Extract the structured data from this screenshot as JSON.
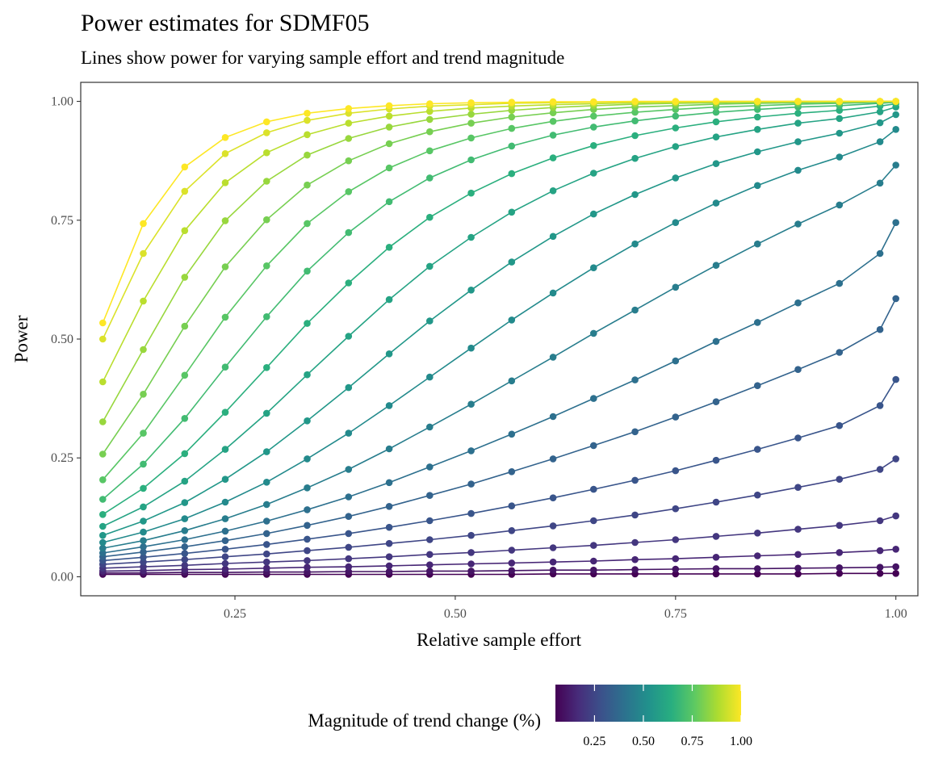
{
  "chart_data": {
    "type": "line",
    "title": "Power estimates for SDMF05",
    "subtitle": "Lines show power for varying sample effort and trend magnitude",
    "xlabel": "Relative sample effort",
    "ylabel": "Power",
    "xlim": [
      0.075,
      1.025
    ],
    "ylim": [
      -0.04,
      1.04
    ],
    "x_ticks": [
      0.25,
      0.5,
      0.75,
      1.0
    ],
    "x_tick_labels": [
      "0.25",
      "0.50",
      "0.75",
      "1.00"
    ],
    "y_ticks": [
      0,
      0.25,
      0.5,
      0.75,
      1.0
    ],
    "y_tick_labels": [
      "0.00",
      "0.25",
      "0.50",
      "0.75",
      "1.00"
    ],
    "grid": false,
    "legend": {
      "title": "Magnitude of trend change (%)",
      "position": "bottom",
      "type": "colorbar",
      "colormap": "viridis",
      "range": [
        0.05,
        1.0
      ],
      "ticks": [
        0.25,
        0.5,
        0.75,
        1.0
      ],
      "tick_labels": [
        "0.25",
        "0.50",
        "0.75",
        "1.00"
      ]
    },
    "x": [
      0.1,
      0.146,
      0.193,
      0.239,
      0.286,
      0.332,
      0.379,
      0.425,
      0.471,
      0.518,
      0.564,
      0.611,
      0.657,
      0.704,
      0.75,
      0.796,
      0.843,
      0.889,
      0.936,
      0.982,
      1.0
    ],
    "series": [
      {
        "magnitude": 0.05,
        "values": [
          0.005,
          0.005,
          0.005,
          0.005,
          0.005,
          0.005,
          0.005,
          0.005,
          0.005,
          0.005,
          0.005,
          0.006,
          0.006,
          0.006,
          0.006,
          0.006,
          0.006,
          0.006,
          0.007,
          0.007,
          0.007
        ]
      },
      {
        "magnitude": 0.1,
        "values": [
          0.008,
          0.008,
          0.009,
          0.009,
          0.01,
          0.01,
          0.011,
          0.011,
          0.012,
          0.012,
          0.013,
          0.014,
          0.014,
          0.015,
          0.016,
          0.017,
          0.017,
          0.018,
          0.019,
          0.02,
          0.021
        ]
      },
      {
        "magnitude": 0.15,
        "values": [
          0.012,
          0.013,
          0.015,
          0.016,
          0.018,
          0.02,
          0.021,
          0.023,
          0.025,
          0.027,
          0.029,
          0.031,
          0.033,
          0.036,
          0.038,
          0.041,
          0.044,
          0.047,
          0.051,
          0.055,
          0.058
        ]
      },
      {
        "magnitude": 0.2,
        "values": [
          0.018,
          0.021,
          0.024,
          0.028,
          0.031,
          0.034,
          0.038,
          0.042,
          0.047,
          0.051,
          0.056,
          0.061,
          0.066,
          0.072,
          0.078,
          0.085,
          0.092,
          0.1,
          0.108,
          0.118,
          0.128
        ]
      },
      {
        "magnitude": 0.25,
        "values": [
          0.026,
          0.031,
          0.036,
          0.042,
          0.048,
          0.055,
          0.062,
          0.07,
          0.078,
          0.087,
          0.097,
          0.107,
          0.118,
          0.13,
          0.143,
          0.157,
          0.172,
          0.188,
          0.205,
          0.226,
          0.248
        ]
      },
      {
        "magnitude": 0.3,
        "values": [
          0.034,
          0.041,
          0.049,
          0.058,
          0.068,
          0.079,
          0.091,
          0.104,
          0.118,
          0.133,
          0.149,
          0.166,
          0.184,
          0.203,
          0.223,
          0.245,
          0.268,
          0.292,
          0.318,
          0.36,
          0.415
        ]
      },
      {
        "magnitude": 0.35,
        "values": [
          0.042,
          0.052,
          0.063,
          0.076,
          0.091,
          0.108,
          0.127,
          0.148,
          0.171,
          0.195,
          0.221,
          0.248,
          0.276,
          0.305,
          0.336,
          0.368,
          0.402,
          0.436,
          0.472,
          0.52,
          0.585
        ]
      },
      {
        "magnitude": 0.4,
        "values": [
          0.05,
          0.063,
          0.078,
          0.096,
          0.117,
          0.141,
          0.168,
          0.198,
          0.231,
          0.265,
          0.3,
          0.337,
          0.375,
          0.414,
          0.454,
          0.495,
          0.535,
          0.576,
          0.617,
          0.68,
          0.745
        ]
      },
      {
        "magnitude": 0.45,
        "values": [
          0.06,
          0.076,
          0.097,
          0.122,
          0.152,
          0.187,
          0.226,
          0.269,
          0.315,
          0.363,
          0.412,
          0.462,
          0.512,
          0.561,
          0.609,
          0.655,
          0.7,
          0.742,
          0.782,
          0.828,
          0.866
        ]
      },
      {
        "magnitude": 0.5,
        "values": [
          0.072,
          0.094,
          0.122,
          0.157,
          0.199,
          0.248,
          0.302,
          0.36,
          0.42,
          0.481,
          0.54,
          0.597,
          0.65,
          0.7,
          0.745,
          0.786,
          0.823,
          0.855,
          0.883,
          0.915,
          0.941
        ]
      },
      {
        "magnitude": 0.55,
        "values": [
          0.087,
          0.117,
          0.156,
          0.205,
          0.263,
          0.328,
          0.398,
          0.469,
          0.538,
          0.603,
          0.662,
          0.716,
          0.763,
          0.804,
          0.839,
          0.869,
          0.894,
          0.915,
          0.933,
          0.955,
          0.972
        ]
      },
      {
        "magnitude": 0.6,
        "values": [
          0.106,
          0.147,
          0.201,
          0.268,
          0.344,
          0.425,
          0.506,
          0.583,
          0.653,
          0.714,
          0.767,
          0.812,
          0.849,
          0.88,
          0.905,
          0.925,
          0.941,
          0.954,
          0.964,
          0.978,
          0.988
        ]
      },
      {
        "magnitude": 0.65,
        "values": [
          0.131,
          0.186,
          0.259,
          0.346,
          0.44,
          0.533,
          0.618,
          0.693,
          0.756,
          0.807,
          0.848,
          0.881,
          0.907,
          0.928,
          0.944,
          0.957,
          0.967,
          0.975,
          0.981,
          0.99,
          0.995
        ]
      },
      {
        "magnitude": 0.7,
        "values": [
          0.163,
          0.237,
          0.333,
          0.441,
          0.547,
          0.643,
          0.724,
          0.789,
          0.839,
          0.877,
          0.906,
          0.929,
          0.946,
          0.959,
          0.969,
          0.977,
          0.983,
          0.988,
          0.991,
          0.996,
          0.998
        ]
      },
      {
        "magnitude": 0.75,
        "values": [
          0.204,
          0.302,
          0.424,
          0.546,
          0.654,
          0.743,
          0.81,
          0.86,
          0.896,
          0.923,
          0.943,
          0.958,
          0.969,
          0.977,
          0.983,
          0.988,
          0.991,
          0.994,
          0.996,
          0.998,
          0.999
        ]
      },
      {
        "magnitude": 0.8,
        "values": [
          0.258,
          0.384,
          0.527,
          0.652,
          0.751,
          0.824,
          0.875,
          0.911,
          0.936,
          0.954,
          0.967,
          0.976,
          0.983,
          0.988,
          0.991,
          0.994,
          0.996,
          0.997,
          0.998,
          0.999,
          1.0
        ]
      },
      {
        "magnitude": 0.85,
        "values": [
          0.326,
          0.478,
          0.63,
          0.749,
          0.832,
          0.887,
          0.922,
          0.946,
          0.962,
          0.973,
          0.981,
          0.987,
          0.991,
          0.994,
          0.996,
          0.997,
          0.998,
          0.999,
          0.999,
          1.0,
          1.0
        ]
      },
      {
        "magnitude": 0.9,
        "values": [
          0.41,
          0.58,
          0.728,
          0.829,
          0.892,
          0.93,
          0.954,
          0.969,
          0.979,
          0.986,
          0.99,
          0.993,
          0.995,
          0.997,
          0.998,
          0.999,
          0.999,
          1.0,
          1.0,
          1.0,
          1.0
        ]
      },
      {
        "magnitude": 0.95,
        "values": [
          0.5,
          0.68,
          0.811,
          0.89,
          0.934,
          0.96,
          0.975,
          0.984,
          0.99,
          0.993,
          0.996,
          0.997,
          0.998,
          0.999,
          0.999,
          1.0,
          1.0,
          1.0,
          1.0,
          1.0,
          1.0
        ]
      },
      {
        "magnitude": 1.0,
        "values": [
          0.534,
          0.743,
          0.862,
          0.924,
          0.957,
          0.975,
          0.985,
          0.991,
          0.995,
          0.997,
          0.998,
          0.999,
          0.999,
          1.0,
          1.0,
          1.0,
          1.0,
          1.0,
          1.0,
          1.0,
          1.0
        ]
      }
    ]
  }
}
